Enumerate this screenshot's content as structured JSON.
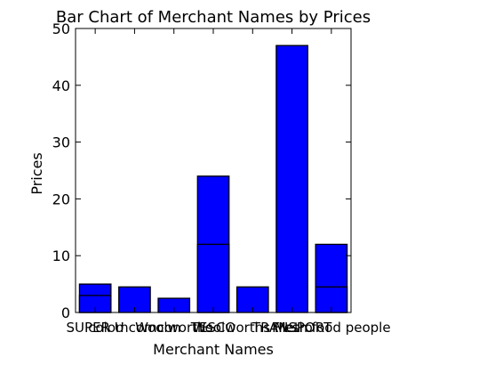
{
  "chart_data": {
    "type": "bar",
    "title": "Bar Chart of Merchant Names by Prices",
    "xlabel": "Merchant Names",
    "ylabel": "Prices",
    "ylim": [
      0,
      50
    ],
    "yticks": [
      0,
      10,
      20,
      30,
      40,
      50
    ],
    "bar_color": "#0000ff",
    "edge_color": "#000000",
    "grid": false,
    "categories": [
      "SUPER U",
      "colomcomcon",
      "Woolworths",
      "TESCO",
      "Woolworths Metro",
      "TRANSPORT",
      "Fresh food people"
    ],
    "bars": [
      {
        "category": "SUPER U",
        "values": [
          5,
          3
        ]
      },
      {
        "category": "colomcomcon",
        "values": [
          4.5
        ]
      },
      {
        "category": "Woolworths",
        "values": [
          2.5
        ]
      },
      {
        "category": "TESCO",
        "values": [
          24,
          12
        ]
      },
      {
        "category": "Woolworths Metro",
        "values": [
          4.5
        ]
      },
      {
        "category": "TRANSPORT",
        "values": [
          47
        ]
      },
      {
        "category": "Fresh food people",
        "values": [
          12,
          4.5
        ]
      }
    ]
  }
}
